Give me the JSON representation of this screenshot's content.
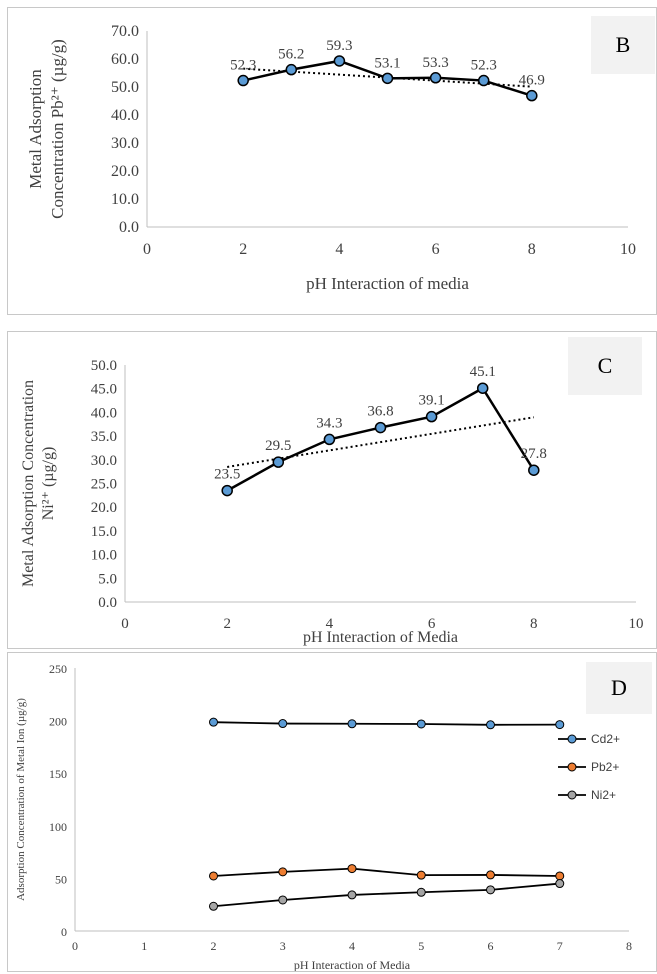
{
  "chart_data": [
    {
      "type": "line",
      "panel": "B",
      "title": "",
      "xlabel": "pH Interaction of media",
      "ylabel_line1": "Metal Adsorption",
      "ylabel_line2": "Concentration Pb²⁺ (µg/g)",
      "xlim": [
        0,
        10
      ],
      "ylim": [
        0,
        70
      ],
      "xticks": [
        "0",
        "2",
        "4",
        "6",
        "8",
        "10"
      ],
      "yticks": [
        "0.0",
        "10.0",
        "20.0",
        "30.0",
        "40.0",
        "50.0",
        "60.0",
        "70.0"
      ],
      "x": [
        2,
        3,
        4,
        5,
        6,
        7,
        8
      ],
      "values": [
        52.3,
        56.2,
        59.3,
        53.1,
        53.3,
        52.3,
        46.9
      ],
      "labels": [
        "52.3",
        "56.2",
        "59.3",
        "53.1",
        "53.3",
        "52.3",
        "46.9"
      ],
      "trendline": true,
      "marker_color": "#5b9bd5"
    },
    {
      "type": "line",
      "panel": "C",
      "title": "",
      "xlabel": "pH Interaction of Media",
      "ylabel_line1": "Metal Adsorption Concentration",
      "ylabel_line2": "Ni²⁺ (µg/g)",
      "xlim": [
        0,
        10
      ],
      "ylim": [
        0,
        50
      ],
      "xticks": [
        "0",
        "2",
        "4",
        "6",
        "8",
        "10"
      ],
      "yticks": [
        "0.0",
        "5.0",
        "10.0",
        "15.0",
        "20.0",
        "25.0",
        "30.0",
        "35.0",
        "40.0",
        "45.0",
        "50.0"
      ],
      "x": [
        2,
        3,
        4,
        5,
        6,
        7,
        8
      ],
      "values": [
        23.5,
        29.5,
        34.3,
        36.8,
        39.1,
        45.1,
        27.8
      ],
      "labels": [
        "23.5",
        "29.5",
        "34.3",
        "36.8",
        "39.1",
        "45.1",
        "27.8"
      ],
      "trendline": true,
      "marker_color": "#5b9bd5"
    },
    {
      "type": "line",
      "panel": "D",
      "title": "",
      "xlabel": "pH Interaction of Media",
      "ylabel": "Adsorption Concentration of Metal Ion (µg/g)",
      "xlim": [
        0,
        8
      ],
      "ylim": [
        0,
        250
      ],
      "xticks": [
        "0",
        "1",
        "2",
        "3",
        "4",
        "5",
        "6",
        "7",
        "8"
      ],
      "yticks": [
        "0",
        "50",
        "100",
        "150",
        "200",
        "250"
      ],
      "x": [
        2,
        3,
        4,
        5,
        6,
        7
      ],
      "legend_position": "right",
      "series": [
        {
          "name": "Cd2+",
          "values": [
            198.5,
            197.2,
            197.0,
            196.8,
            196.0,
            196.2
          ],
          "color": "#5b9bd5"
        },
        {
          "name": "Pb2+",
          "values": [
            52.3,
            56.2,
            59.3,
            53.1,
            53.3,
            52.3
          ],
          "color": "#ed7d31"
        },
        {
          "name": "Ni2+",
          "values": [
            23.5,
            29.5,
            34.3,
            36.8,
            39.1,
            45.1
          ],
          "color": "#a5a5a5"
        }
      ]
    }
  ]
}
